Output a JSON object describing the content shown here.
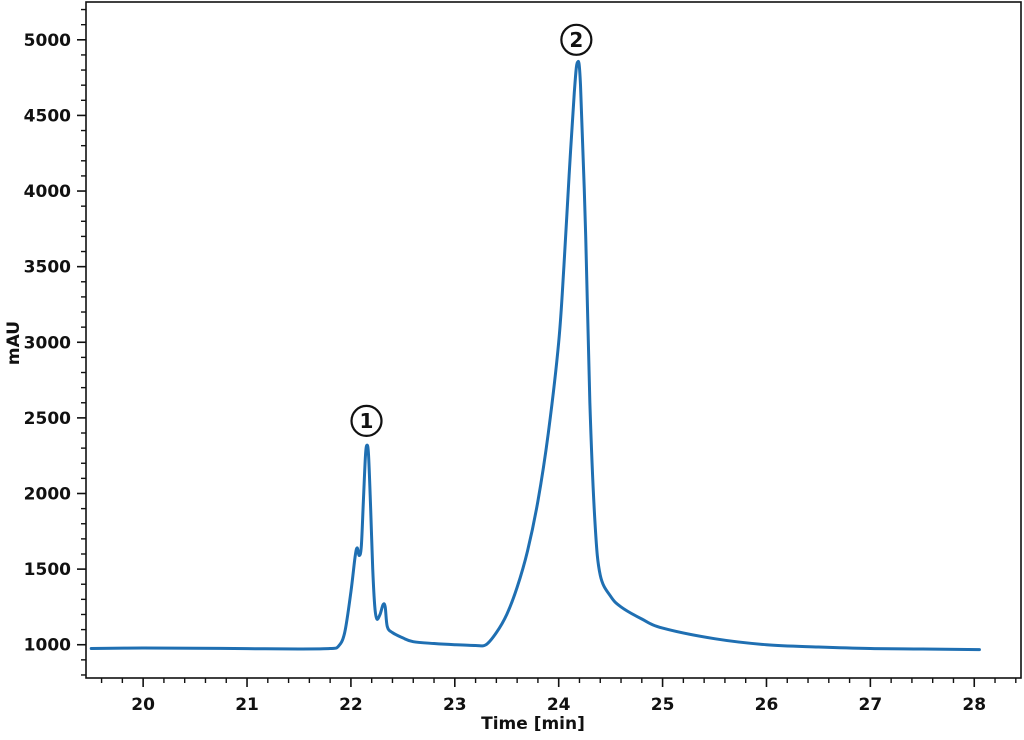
{
  "chart_data": {
    "type": "line",
    "title": "",
    "xlabel": "Time [min]",
    "ylabel": "mAU",
    "xlim": [
      19.45,
      28.45
    ],
    "ylim": [
      780,
      5250
    ],
    "x_ticks": [
      20,
      21,
      22,
      23,
      24,
      25,
      26,
      27,
      28
    ],
    "x_tick_labels": [
      "20",
      "21",
      "22",
      "23",
      "24",
      "25",
      "26",
      "27",
      "28"
    ],
    "y_ticks": [
      1000,
      1500,
      2000,
      2500,
      3000,
      3500,
      4000,
      4500,
      5000
    ],
    "y_tick_labels": [
      "1000",
      "1500",
      "2000",
      "2500",
      "3000",
      "3500",
      "4000",
      "4500",
      "5000"
    ],
    "grid": false,
    "color": "#1f6fb2",
    "series": [
      {
        "points": [
          [
            19.5,
            975
          ],
          [
            20.0,
            978
          ],
          [
            20.5,
            977
          ],
          [
            21.0,
            974
          ],
          [
            21.5,
            972
          ],
          [
            21.8,
            975
          ],
          [
            21.88,
            990
          ],
          [
            21.94,
            1080
          ],
          [
            22.0,
            1350
          ],
          [
            22.04,
            1580
          ],
          [
            22.06,
            1640
          ],
          [
            22.08,
            1590
          ],
          [
            22.1,
            1650
          ],
          [
            22.12,
            1950
          ],
          [
            22.14,
            2250
          ],
          [
            22.155,
            2320
          ],
          [
            22.17,
            2250
          ],
          [
            22.19,
            1900
          ],
          [
            22.21,
            1500
          ],
          [
            22.23,
            1250
          ],
          [
            22.25,
            1170
          ],
          [
            22.28,
            1200
          ],
          [
            22.31,
            1265
          ],
          [
            22.33,
            1250
          ],
          [
            22.35,
            1120
          ],
          [
            22.4,
            1080
          ],
          [
            22.5,
            1045
          ],
          [
            22.6,
            1020
          ],
          [
            22.8,
            1008
          ],
          [
            23.0,
            1000
          ],
          [
            23.2,
            995
          ],
          [
            23.3,
            1000
          ],
          [
            23.4,
            1080
          ],
          [
            23.5,
            1200
          ],
          [
            23.6,
            1380
          ],
          [
            23.7,
            1620
          ],
          [
            23.8,
            1950
          ],
          [
            23.9,
            2400
          ],
          [
            24.0,
            3000
          ],
          [
            24.05,
            3500
          ],
          [
            24.1,
            4100
          ],
          [
            24.15,
            4650
          ],
          [
            24.18,
            4850
          ],
          [
            24.21,
            4700
          ],
          [
            24.26,
            3700
          ],
          [
            24.3,
            2600
          ],
          [
            24.35,
            1800
          ],
          [
            24.4,
            1460
          ],
          [
            24.5,
            1320
          ],
          [
            24.6,
            1250
          ],
          [
            24.8,
            1170
          ],
          [
            25.0,
            1110
          ],
          [
            25.5,
            1040
          ],
          [
            26.0,
            1000
          ],
          [
            26.5,
            985
          ],
          [
            27.0,
            975
          ],
          [
            27.5,
            972
          ],
          [
            28.05,
            968
          ]
        ]
      }
    ],
    "annotations": [
      {
        "text": "1",
        "x": 22.15,
        "y": 2480
      },
      {
        "text": "2",
        "x": 24.17,
        "y": 5000
      }
    ]
  }
}
